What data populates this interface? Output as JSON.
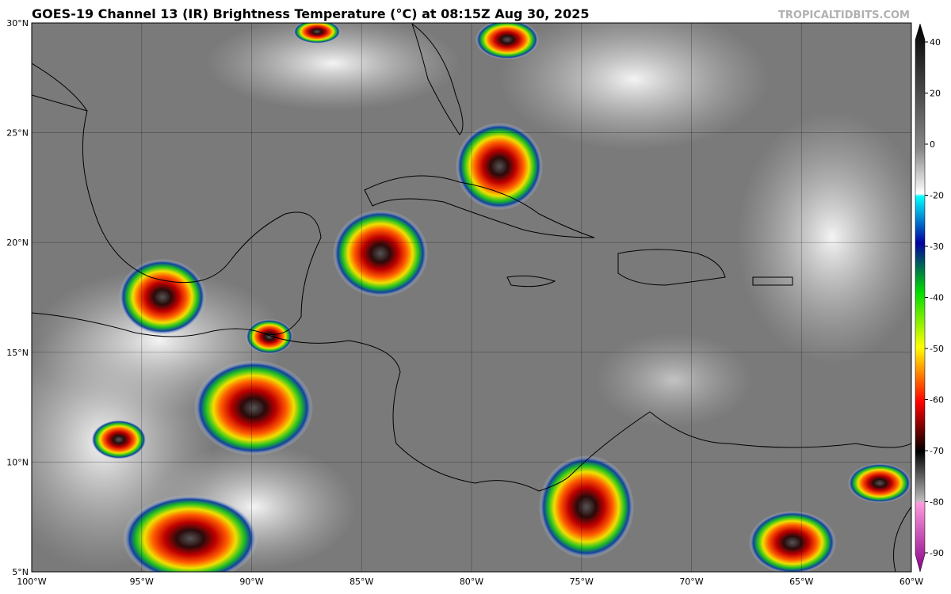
{
  "header": {
    "title": "GOES-19 Channel 13 (IR) Brightness Temperature (°C) at 08:15Z Aug 30, 2025",
    "credit": "TROPICALTIDBITS.COM"
  },
  "map": {
    "lon_labels": [
      "100°W",
      "95°W",
      "90°W",
      "85°W",
      "80°W",
      "75°W",
      "70°W",
      "65°W",
      "60°W"
    ],
    "lat_labels": [
      "30°N",
      "25°N",
      "20°N",
      "15°N",
      "10°N",
      "5°N"
    ]
  },
  "colorbar": {
    "ticks": [
      40,
      20,
      0,
      -20,
      -30,
      -40,
      -50,
      -60,
      -70,
      -80,
      -90
    ]
  }
}
